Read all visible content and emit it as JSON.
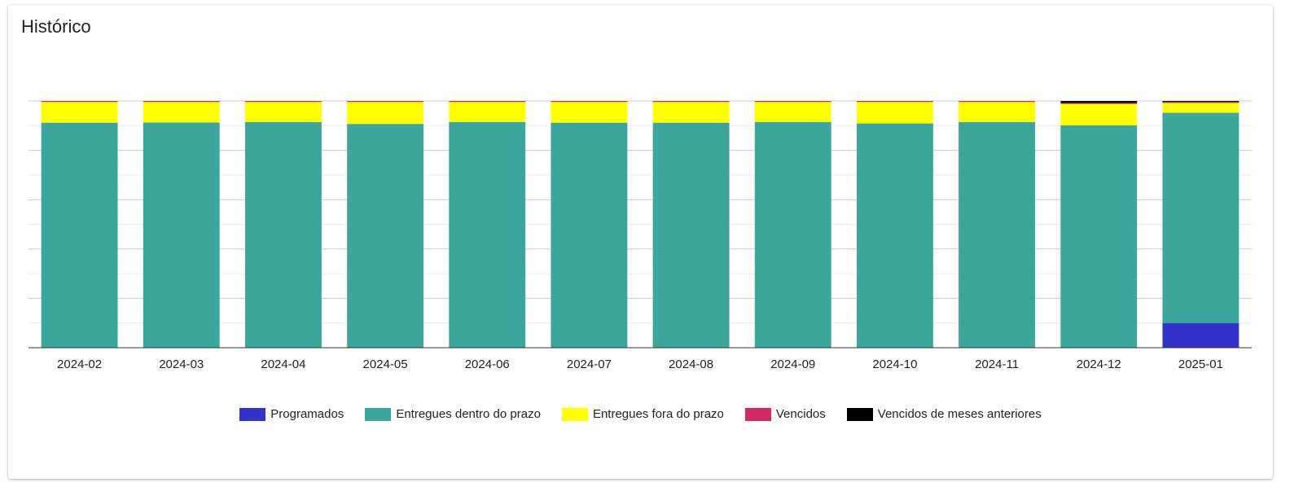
{
  "card": {
    "title": "Histórico"
  },
  "chart_data": {
    "type": "bar",
    "stacked": true,
    "normalized": true,
    "title": "",
    "xlabel": "",
    "ylabel": "",
    "ylim": [
      0,
      100
    ],
    "grid": true,
    "legend_position": "bottom",
    "categories": [
      "2024-02",
      "2024-03",
      "2024-04",
      "2024-05",
      "2024-06",
      "2024-07",
      "2024-08",
      "2024-09",
      "2024-10",
      "2024-11",
      "2024-12",
      "2025-01"
    ],
    "series": [
      {
        "name": "Programados",
        "color": "#3333cc",
        "values": [
          0,
          0,
          0,
          0,
          0,
          0,
          0,
          0,
          0,
          0,
          0,
          10
        ]
      },
      {
        "name": "Entregues dentro do prazo",
        "color": "#3aa69c",
        "values": [
          91.2,
          91.3,
          91.5,
          90.7,
          91.5,
          91.2,
          91.2,
          91.5,
          90.9,
          91.5,
          90.1,
          85.2
        ]
      },
      {
        "name": "Entregues fora do prazo",
        "color": "#ffff00",
        "values": [
          8.4,
          8.3,
          8.1,
          8.9,
          8.1,
          8.4,
          8.4,
          8.1,
          8.7,
          8.1,
          8.7,
          4.0
        ]
      },
      {
        "name": "Vencidos",
        "color": "#d12a64",
        "values": [
          0.4,
          0.4,
          0.4,
          0.4,
          0.4,
          0.4,
          0.4,
          0.4,
          0.4,
          0.4,
          0.4,
          0.4
        ]
      },
      {
        "name": "Vencidos de meses anteriores",
        "color": "#000000",
        "values": [
          0,
          0,
          0,
          0,
          0,
          0,
          0,
          0,
          0,
          0,
          0.8,
          0.4
        ]
      }
    ]
  }
}
